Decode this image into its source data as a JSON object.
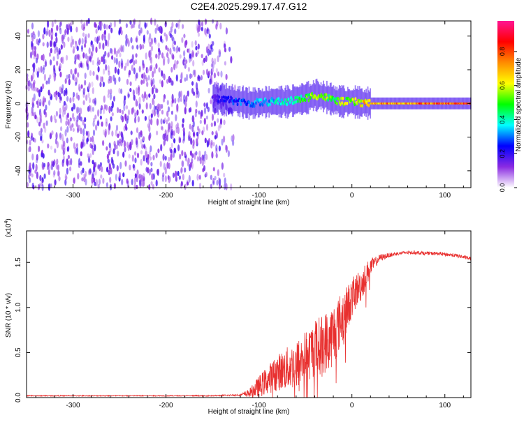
{
  "title": "C2E4.2025.299.17.47.G12",
  "chart_data": [
    {
      "type": "heatmap",
      "title": "C2E4.2025.299.17.47.G12",
      "xlabel": "Height of straight line (km)",
      "ylabel": "Frequency (Hz)",
      "xlim": [
        -350,
        128
      ],
      "ylim": [
        -50,
        49
      ],
      "xticks": [
        -300,
        -200,
        -100,
        0,
        100
      ],
      "xtick_labels": [
        "-300",
        "-200",
        "-100",
        "0",
        "100"
      ],
      "yticks": [
        -40,
        -20,
        0,
        20,
        40
      ],
      "ytick_labels": [
        "-40",
        "-20",
        "0",
        "20",
        "40"
      ],
      "colorbar": {
        "label": "Normalized spectral amplitude",
        "range": [
          0,
          0.98
        ],
        "ticks": [
          0.0,
          0.2,
          0.4,
          0.6,
          0.8
        ],
        "tick_labels": [
          "0.0",
          "0.2",
          "0.4",
          "0.6",
          "0.8"
        ],
        "colors": [
          "#ffffff",
          "#8a2be2",
          "#0000ff",
          "#00ffff",
          "#00ff00",
          "#ffff00",
          "#ff8c00",
          "#ff0000",
          "#ff1493"
        ]
      },
      "noise_region": {
        "x_range": [
          -350,
          -125
        ],
        "freq_range": [
          -50,
          49
        ],
        "amplitude": [
          0.0,
          0.15
        ]
      },
      "signal_track": [
        {
          "x": -150,
          "freq": 3,
          "amplitude": 0.2
        },
        {
          "x": -130,
          "freq": 2,
          "amplitude": 0.3
        },
        {
          "x": -110,
          "freq": 0,
          "amplitude": 0.35
        },
        {
          "x": -90,
          "freq": 1,
          "amplitude": 0.4
        },
        {
          "x": -70,
          "freq": 1,
          "amplitude": 0.45
        },
        {
          "x": -50,
          "freq": 3,
          "amplitude": 0.55
        },
        {
          "x": -40,
          "freq": 5,
          "amplitude": 0.7
        },
        {
          "x": -30,
          "freq": 4,
          "amplitude": 0.6
        },
        {
          "x": -20,
          "freq": 2,
          "amplitude": 0.6
        },
        {
          "x": -10,
          "freq": 1,
          "amplitude": 0.65
        },
        {
          "x": 0,
          "freq": 1,
          "amplitude": 0.7
        },
        {
          "x": 20,
          "freq": 0,
          "amplitude": 0.8
        },
        {
          "x": 60,
          "freq": 0,
          "amplitude": 0.85
        },
        {
          "x": 100,
          "freq": 0,
          "amplitude": 0.9
        },
        {
          "x": 128,
          "freq": 0,
          "amplitude": 0.9
        }
      ]
    },
    {
      "type": "line",
      "xlabel": "Height of straight line (km)",
      "ylabel": "SNR (10 * v/v)",
      "y_multiplier": "(x10",
      "y_multiplier_exp": "4",
      "y_multiplier_close": ")",
      "xlim": [
        -350,
        128
      ],
      "ylim": [
        0,
        1.85
      ],
      "xticks": [
        -300,
        -200,
        -100,
        0,
        100
      ],
      "xtick_labels": [
        "-300",
        "-200",
        "-100",
        "0",
        "100"
      ],
      "yticks": [
        0.0,
        0.5,
        1.0,
        1.5
      ],
      "ytick_labels": [
        "0.0",
        "0.5",
        "1.0",
        "1.5"
      ],
      "series": [
        {
          "name": "SNR",
          "color": "#e8302f",
          "x": [
            -350,
            -300,
            -250,
            -200,
            -150,
            -120,
            -110,
            -100,
            -90,
            -80,
            -70,
            -60,
            -50,
            -40,
            -30,
            -20,
            -15,
            -10,
            -5,
            0,
            5,
            10,
            15,
            20,
            25,
            30,
            40,
            50,
            60,
            70,
            80,
            90,
            100,
            110,
            120,
            128
          ],
          "y": [
            0.02,
            0.02,
            0.02,
            0.02,
            0.02,
            0.03,
            0.05,
            0.12,
            0.2,
            0.28,
            0.32,
            0.36,
            0.45,
            0.55,
            0.6,
            0.7,
            0.8,
            0.9,
            1.0,
            1.1,
            1.2,
            1.25,
            1.35,
            1.45,
            1.5,
            1.55,
            1.58,
            1.6,
            1.61,
            1.61,
            1.6,
            1.6,
            1.59,
            1.58,
            1.56,
            1.54
          ],
          "noise_amplitude": [
            0.005,
            0.005,
            0.005,
            0.005,
            0.006,
            0.01,
            0.05,
            0.12,
            0.16,
            0.2,
            0.24,
            0.27,
            0.3,
            0.32,
            0.34,
            0.36,
            0.32,
            0.3,
            0.25,
            0.22,
            0.2,
            0.18,
            0.15,
            0.1,
            0.06,
            0.04,
            0.025,
            0.02,
            0.02,
            0.02,
            0.02,
            0.02,
            0.02,
            0.02,
            0.02,
            0.02
          ]
        }
      ]
    }
  ]
}
